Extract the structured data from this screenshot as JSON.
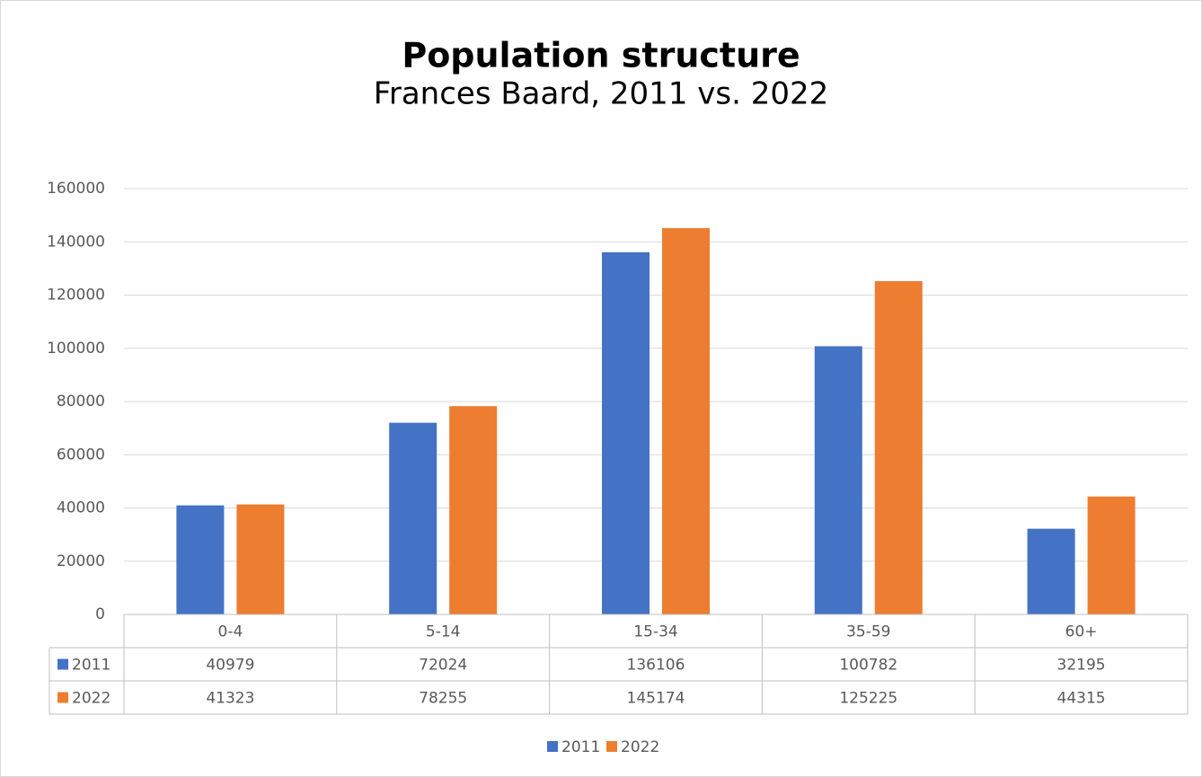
{
  "chart_data": {
    "type": "bar",
    "title": "Population structure",
    "subtitle": "Frances Baard, 2011 vs. 2022",
    "categories": [
      "0-4",
      "5-14",
      "15-34",
      "35-59",
      "60+"
    ],
    "series": [
      {
        "name": "2011",
        "color": "#4472c4",
        "values": [
          40979,
          72024,
          136106,
          100782,
          32195
        ]
      },
      {
        "name": "2022",
        "color": "#ed7d31",
        "values": [
          41323,
          78255,
          145174,
          125225,
          44315
        ]
      }
    ],
    "ylim": [
      0,
      160000
    ],
    "yticks": [
      0,
      20000,
      40000,
      60000,
      80000,
      100000,
      120000,
      140000,
      160000
    ],
    "grid": true,
    "data_table": true,
    "legend": "bottom"
  }
}
